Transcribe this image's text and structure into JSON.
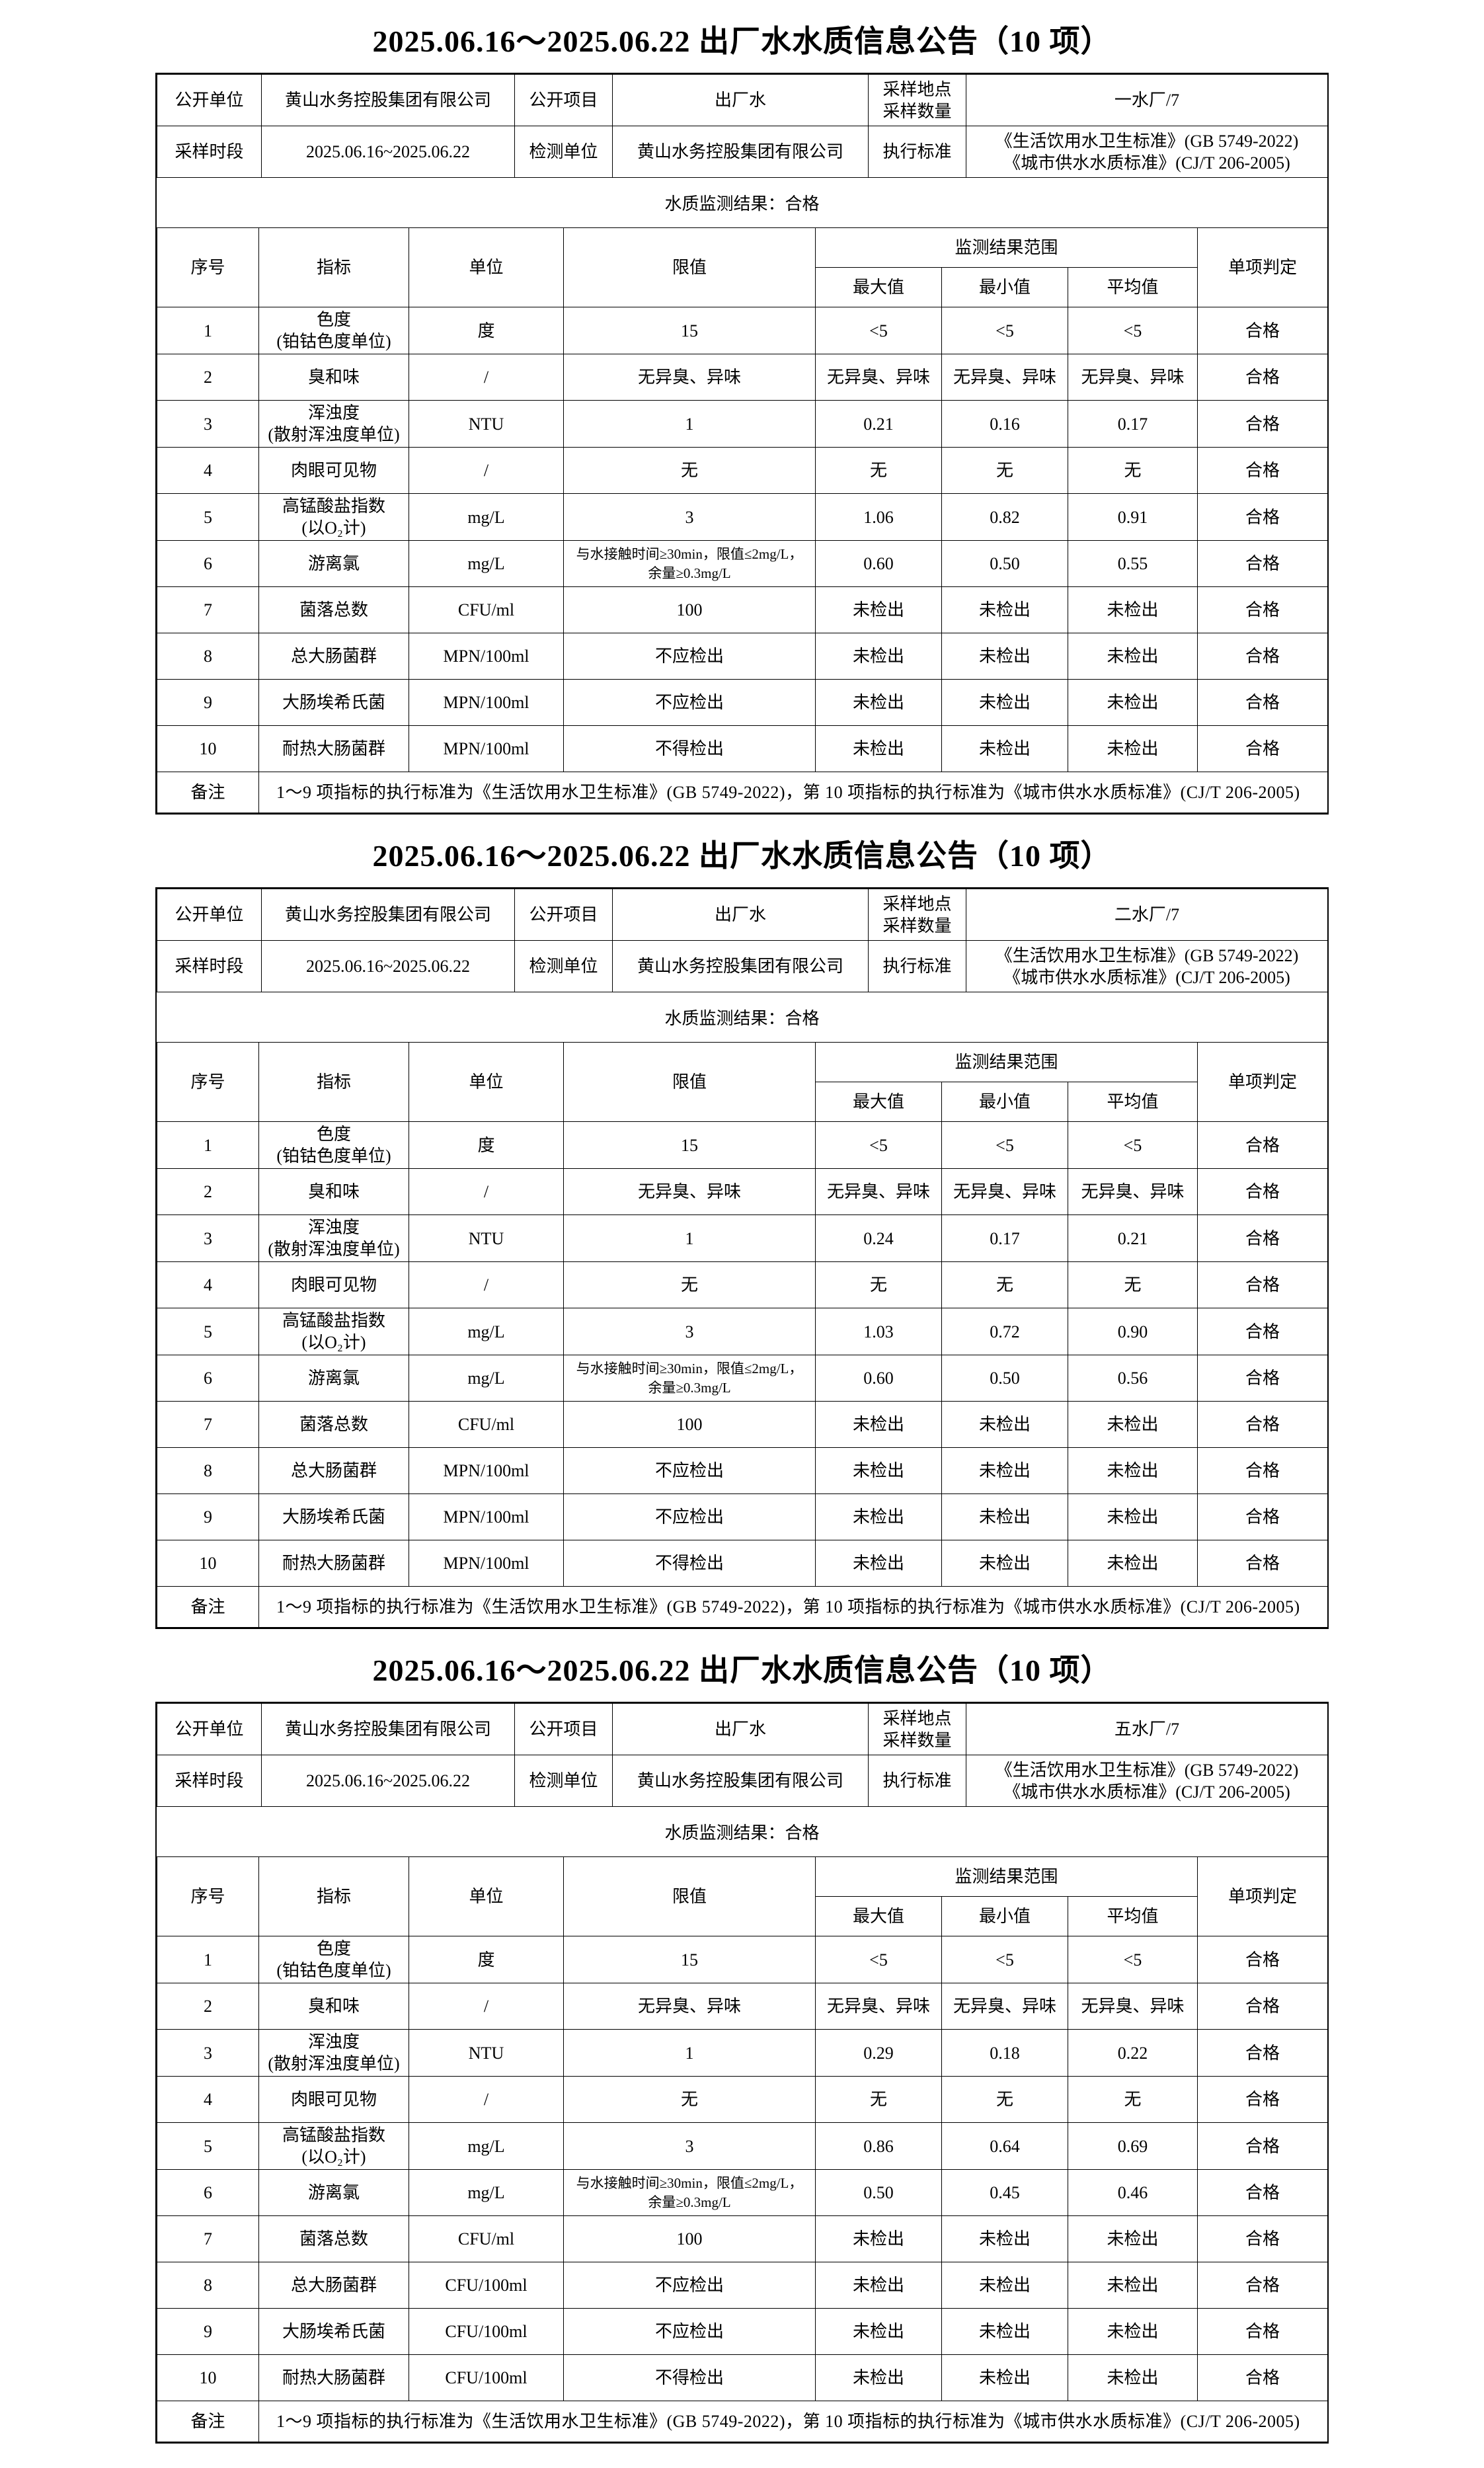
{
  "page": {
    "title": "2025.06.16～2025.06.22 出厂水水质信息公告（10 项）"
  },
  "labels": {
    "publish_unit": "公开单位",
    "publish_item": "公开项目",
    "sample_site_qty": [
      "采样地点",
      "采样数量"
    ],
    "sampling_period": "采样时段",
    "testing_unit": "检测单位",
    "exec_standard": "执行标准",
    "result_line": "水质监测结果：合格",
    "seq": "序号",
    "indicator": "指标",
    "unit": "单位",
    "limit": "限值",
    "range": "监测结果范围",
    "max": "最大值",
    "min": "最小值",
    "avg": "平均值",
    "judge": "单项判定",
    "note": "备注"
  },
  "common": {
    "org": "黄山水务控股集团有限公司",
    "item": "出厂水",
    "period": "2025.06.16~2025.06.22",
    "standards": [
      "《生活饮用水卫生标准》(GB 5749-2022)",
      "《城市供水水质标准》(CJ/T 206-2005)"
    ],
    "note_text": "1～9 项指标的执行标准为《生活饮用水卫生标准》(GB 5749-2022)，第 10 项指标的执行标准为《城市供水水质标准》(CJ/T 206-2005)"
  },
  "sections": [
    {
      "plant": "一水厂/7",
      "rows": [
        {
          "seq": "1",
          "indicator": [
            "色度",
            "(铂钴色度单位)"
          ],
          "unit": "度",
          "limit": [
            "15"
          ],
          "max": "<5",
          "min": "<5",
          "avg": "<5",
          "judge": "合格"
        },
        {
          "seq": "2",
          "indicator": [
            "臭和味"
          ],
          "unit": "/",
          "limit": [
            "无异臭、异味"
          ],
          "max": "无异臭、异味",
          "min": "无异臭、异味",
          "avg": "无异臭、异味",
          "judge": "合格"
        },
        {
          "seq": "3",
          "indicator": [
            "浑浊度",
            "(散射浑浊度单位)"
          ],
          "unit": "NTU",
          "limit": [
            "1"
          ],
          "max": "0.21",
          "min": "0.16",
          "avg": "0.17",
          "judge": "合格"
        },
        {
          "seq": "4",
          "indicator": [
            "肉眼可见物"
          ],
          "unit": "/",
          "limit": [
            "无"
          ],
          "max": "无",
          "min": "无",
          "avg": "无",
          "judge": "合格"
        },
        {
          "seq": "5",
          "indicator": [
            "高锰酸盐指数",
            "(以O₂计)"
          ],
          "unit": "mg/L",
          "limit": [
            "3"
          ],
          "max": "1.06",
          "min": "0.82",
          "avg": "0.91",
          "judge": "合格"
        },
        {
          "seq": "6",
          "indicator": [
            "游离氯"
          ],
          "unit": "mg/L",
          "limit": [
            "与水接触时间≥30min，限值≤2mg/L，",
            "余量≥0.3mg/L"
          ],
          "limit_small": true,
          "max": "0.60",
          "min": "0.50",
          "avg": "0.55",
          "judge": "合格"
        },
        {
          "seq": "7",
          "indicator": [
            "菌落总数"
          ],
          "unit": "CFU/ml",
          "limit": [
            "100"
          ],
          "max": "未检出",
          "min": "未检出",
          "avg": "未检出",
          "judge": "合格"
        },
        {
          "seq": "8",
          "indicator": [
            "总大肠菌群"
          ],
          "unit": "MPN/100ml",
          "limit": [
            "不应检出"
          ],
          "max": "未检出",
          "min": "未检出",
          "avg": "未检出",
          "judge": "合格"
        },
        {
          "seq": "9",
          "indicator": [
            "大肠埃希氏菌"
          ],
          "unit": "MPN/100ml",
          "limit": [
            "不应检出"
          ],
          "max": "未检出",
          "min": "未检出",
          "avg": "未检出",
          "judge": "合格"
        },
        {
          "seq": "10",
          "indicator": [
            "耐热大肠菌群"
          ],
          "unit": "MPN/100ml",
          "limit": [
            "不得检出"
          ],
          "max": "未检出",
          "min": "未检出",
          "avg": "未检出",
          "judge": "合格"
        }
      ]
    },
    {
      "plant": "二水厂/7",
      "rows": [
        {
          "seq": "1",
          "indicator": [
            "色度",
            "(铂钴色度单位)"
          ],
          "unit": "度",
          "limit": [
            "15"
          ],
          "max": "<5",
          "min": "<5",
          "avg": "<5",
          "judge": "合格"
        },
        {
          "seq": "2",
          "indicator": [
            "臭和味"
          ],
          "unit": "/",
          "limit": [
            "无异臭、异味"
          ],
          "max": "无异臭、异味",
          "min": "无异臭、异味",
          "avg": "无异臭、异味",
          "judge": "合格"
        },
        {
          "seq": "3",
          "indicator": [
            "浑浊度",
            "(散射浑浊度单位)"
          ],
          "unit": "NTU",
          "limit": [
            "1"
          ],
          "max": "0.24",
          "min": "0.17",
          "avg": "0.21",
          "judge": "合格"
        },
        {
          "seq": "4",
          "indicator": [
            "肉眼可见物"
          ],
          "unit": "/",
          "limit": [
            "无"
          ],
          "max": "无",
          "min": "无",
          "avg": "无",
          "judge": "合格"
        },
        {
          "seq": "5",
          "indicator": [
            "高锰酸盐指数",
            "(以O₂计)"
          ],
          "unit": "mg/L",
          "limit": [
            "3"
          ],
          "max": "1.03",
          "min": "0.72",
          "avg": "0.90",
          "judge": "合格"
        },
        {
          "seq": "6",
          "indicator": [
            "游离氯"
          ],
          "unit": "mg/L",
          "limit": [
            "与水接触时间≥30min，限值≤2mg/L，",
            "余量≥0.3mg/L"
          ],
          "limit_small": true,
          "max": "0.60",
          "min": "0.50",
          "avg": "0.56",
          "judge": "合格"
        },
        {
          "seq": "7",
          "indicator": [
            "菌落总数"
          ],
          "unit": "CFU/ml",
          "limit": [
            "100"
          ],
          "max": "未检出",
          "min": "未检出",
          "avg": "未检出",
          "judge": "合格"
        },
        {
          "seq": "8",
          "indicator": [
            "总大肠菌群"
          ],
          "unit": "MPN/100ml",
          "limit": [
            "不应检出"
          ],
          "max": "未检出",
          "min": "未检出",
          "avg": "未检出",
          "judge": "合格"
        },
        {
          "seq": "9",
          "indicator": [
            "大肠埃希氏菌"
          ],
          "unit": "MPN/100ml",
          "limit": [
            "不应检出"
          ],
          "max": "未检出",
          "min": "未检出",
          "avg": "未检出",
          "judge": "合格"
        },
        {
          "seq": "10",
          "indicator": [
            "耐热大肠菌群"
          ],
          "unit": "MPN/100ml",
          "limit": [
            "不得检出"
          ],
          "max": "未检出",
          "min": "未检出",
          "avg": "未检出",
          "judge": "合格"
        }
      ]
    },
    {
      "plant": "五水厂/7",
      "rows": [
        {
          "seq": "1",
          "indicator": [
            "色度",
            "(铂钴色度单位)"
          ],
          "unit": "度",
          "limit": [
            "15"
          ],
          "max": "<5",
          "min": "<5",
          "avg": "<5",
          "judge": "合格"
        },
        {
          "seq": "2",
          "indicator": [
            "臭和味"
          ],
          "unit": "/",
          "limit": [
            "无异臭、异味"
          ],
          "max": "无异臭、异味",
          "min": "无异臭、异味",
          "avg": "无异臭、异味",
          "judge": "合格"
        },
        {
          "seq": "3",
          "indicator": [
            "浑浊度",
            "(散射浑浊度单位)"
          ],
          "unit": "NTU",
          "limit": [
            "1"
          ],
          "max": "0.29",
          "min": "0.18",
          "avg": "0.22",
          "judge": "合格"
        },
        {
          "seq": "4",
          "indicator": [
            "肉眼可见物"
          ],
          "unit": "/",
          "limit": [
            "无"
          ],
          "max": "无",
          "min": "无",
          "avg": "无",
          "judge": "合格"
        },
        {
          "seq": "5",
          "indicator": [
            "高锰酸盐指数",
            "(以O₂计)"
          ],
          "unit": "mg/L",
          "limit": [
            "3"
          ],
          "max": "0.86",
          "min": "0.64",
          "avg": "0.69",
          "judge": "合格"
        },
        {
          "seq": "6",
          "indicator": [
            "游离氯"
          ],
          "unit": "mg/L",
          "limit": [
            "与水接触时间≥30min，限值≤2mg/L，",
            "余量≥0.3mg/L"
          ],
          "limit_small": true,
          "max": "0.50",
          "min": "0.45",
          "avg": "0.46",
          "judge": "合格"
        },
        {
          "seq": "7",
          "indicator": [
            "菌落总数"
          ],
          "unit": "CFU/ml",
          "limit": [
            "100"
          ],
          "max": "未检出",
          "min": "未检出",
          "avg": "未检出",
          "judge": "合格"
        },
        {
          "seq": "8",
          "indicator": [
            "总大肠菌群"
          ],
          "unit": "CFU/100ml",
          "limit": [
            "不应检出"
          ],
          "max": "未检出",
          "min": "未检出",
          "avg": "未检出",
          "judge": "合格"
        },
        {
          "seq": "9",
          "indicator": [
            "大肠埃希氏菌"
          ],
          "unit": "CFU/100ml",
          "limit": [
            "不应检出"
          ],
          "max": "未检出",
          "min": "未检出",
          "avg": "未检出",
          "judge": "合格"
        },
        {
          "seq": "10",
          "indicator": [
            "耐热大肠菌群"
          ],
          "unit": "CFU/100ml",
          "limit": [
            "不得检出"
          ],
          "max": "未检出",
          "min": "未检出",
          "avg": "未检出",
          "judge": "合格"
        }
      ]
    }
  ]
}
